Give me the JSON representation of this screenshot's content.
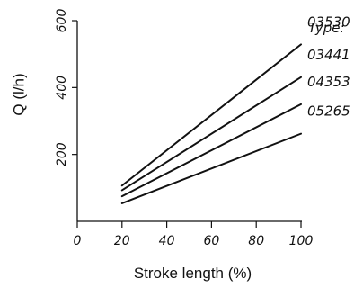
{
  "chart_data": {
    "type": "line",
    "title": "",
    "xlabel": "Stroke length (%)",
    "ylabel": "Q (l/h)",
    "xlim": [
      0,
      100
    ],
    "ylim": [
      0,
      600
    ],
    "x_ticks": [
      0,
      20,
      40,
      60,
      80,
      100
    ],
    "y_ticks": [
      200,
      400,
      600
    ],
    "y_tick_labels": [
      "200",
      "400",
      "600"
    ],
    "x_tick_labels": [
      "0",
      "20",
      "40",
      "60",
      "80",
      "100"
    ],
    "legend_title": "Type:",
    "legend_placement": "right",
    "grid": false,
    "series": [
      {
        "name": "03530",
        "x": [
          20,
          100
        ],
        "y": [
          107,
          529
        ]
      },
      {
        "name": "03441",
        "x": [
          20,
          100
        ],
        "y": [
          93,
          431
        ]
      },
      {
        "name": "04353",
        "x": [
          20,
          100
        ],
        "y": [
          75,
          350
        ]
      },
      {
        "name": "05265",
        "x": [
          20,
          100
        ],
        "y": [
          54,
          262
        ]
      }
    ]
  }
}
